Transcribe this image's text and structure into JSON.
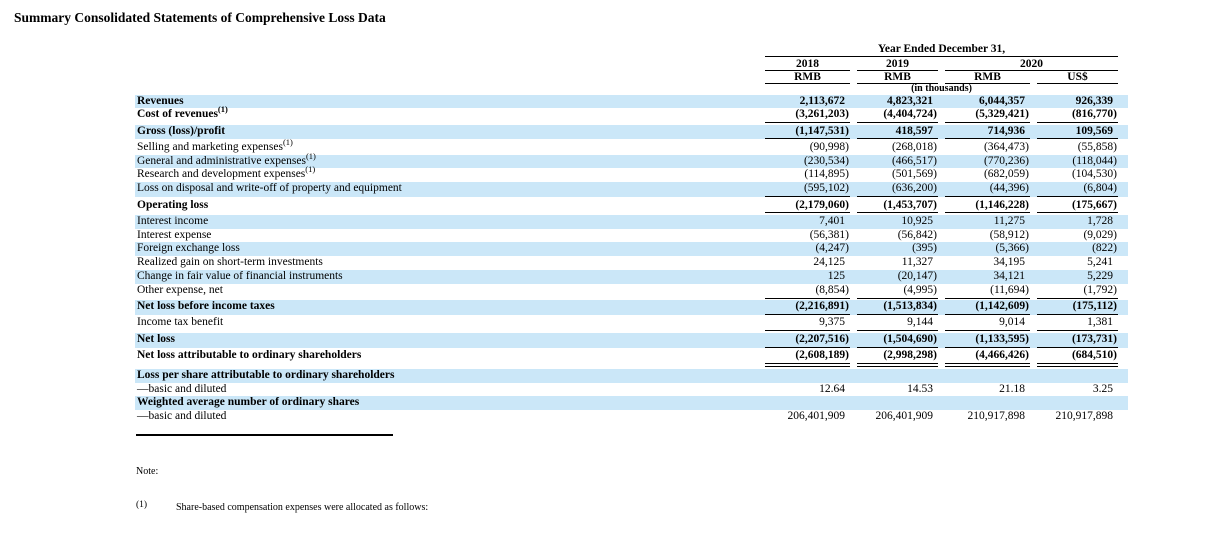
{
  "title": "Summary Consolidated Statements of Comprehensive Loss Data",
  "colors": {
    "row_shade": "#cbe7f8",
    "text": "#000000",
    "rule": "#000000"
  },
  "table": {
    "period_header": "Year Ended December 31,",
    "unit_note": "(in thousands)",
    "year_groups": [
      {
        "label": "2018",
        "span": 1
      },
      {
        "label": "2019",
        "span": 1
      },
      {
        "label": "2020",
        "span": 2
      }
    ],
    "currency_headers": [
      "RMB",
      "RMB",
      "RMB",
      "US$"
    ],
    "rows": [
      {
        "label": "Revenues",
        "sup": "",
        "values": [
          "2,113,672",
          "4,823,321",
          "6,044,357",
          "926,339"
        ],
        "bold": true,
        "shaded": true,
        "underline": false,
        "double_underline": false
      },
      {
        "label": "Cost of revenues",
        "sup": "(1)",
        "values": [
          "(3,261,203)",
          "(4,404,724)",
          "(5,329,421)",
          "(816,770)"
        ],
        "bold": true,
        "shaded": false,
        "underline": true,
        "double_underline": false
      },
      {
        "label": "Gross (loss)/profit",
        "sup": "",
        "values": [
          "(1,147,531)",
          "418,597",
          "714,936",
          "109,569"
        ],
        "bold": true,
        "shaded": true,
        "underline": true,
        "double_underline": false
      },
      {
        "label": "Selling and marketing expenses",
        "sup": "(1)",
        "values": [
          "(90,998)",
          "(268,018)",
          "(364,473)",
          "(55,858)"
        ],
        "bold": false,
        "shaded": false,
        "underline": false,
        "double_underline": false
      },
      {
        "label": "General and administrative expenses",
        "sup": "(1)",
        "values": [
          "(230,534)",
          "(466,517)",
          "(770,236)",
          "(118,044)"
        ],
        "bold": false,
        "shaded": true,
        "underline": false,
        "double_underline": false
      },
      {
        "label": "Research and development expenses",
        "sup": "(1)",
        "values": [
          "(114,895)",
          "(501,569)",
          "(682,059)",
          "(104,530)"
        ],
        "bold": false,
        "shaded": false,
        "underline": false,
        "double_underline": false
      },
      {
        "label": "Loss on disposal and write-off of property and equipment",
        "sup": "",
        "values": [
          "(595,102)",
          "(636,200)",
          "(44,396)",
          "(6,804)"
        ],
        "bold": false,
        "shaded": true,
        "underline": true,
        "double_underline": false
      },
      {
        "label": "Operating loss",
        "sup": "",
        "values": [
          "(2,179,060)",
          "(1,453,707)",
          "(1,146,228)",
          "(175,667)"
        ],
        "bold": true,
        "shaded": false,
        "underline": true,
        "double_underline": false
      },
      {
        "label": "Interest income",
        "sup": "",
        "values": [
          "7,401",
          "10,925",
          "11,275",
          "1,728"
        ],
        "bold": false,
        "shaded": true,
        "underline": false,
        "double_underline": false
      },
      {
        "label": "Interest expense",
        "sup": "",
        "values": [
          "(56,381)",
          "(56,842)",
          "(58,912)",
          "(9,029)"
        ],
        "bold": false,
        "shaded": false,
        "underline": false,
        "double_underline": false
      },
      {
        "label": "Foreign exchange loss",
        "sup": "",
        "values": [
          "(4,247)",
          "(395)",
          "(5,366)",
          "(822)"
        ],
        "bold": false,
        "shaded": true,
        "underline": false,
        "double_underline": false
      },
      {
        "label": "Realized gain on short-term investments",
        "sup": "",
        "values": [
          "24,125",
          "11,327",
          "34,195",
          "5,241"
        ],
        "bold": false,
        "shaded": false,
        "underline": false,
        "double_underline": false
      },
      {
        "label": "Change in fair value of financial instruments",
        "sup": "",
        "values": [
          "125",
          "(20,147)",
          "34,121",
          "5,229"
        ],
        "bold": false,
        "shaded": true,
        "underline": false,
        "double_underline": false
      },
      {
        "label": "Other expense, net",
        "sup": "",
        "values": [
          "(8,854)",
          "(4,995)",
          "(11,694)",
          "(1,792)"
        ],
        "bold": false,
        "shaded": false,
        "underline": true,
        "double_underline": false
      },
      {
        "label": "Net loss before income taxes",
        "sup": "",
        "values": [
          "(2,216,891)",
          "(1,513,834)",
          "(1,142,609)",
          "(175,112)"
        ],
        "bold": true,
        "shaded": true,
        "underline": true,
        "double_underline": false
      },
      {
        "label": "Income tax benefit",
        "sup": "",
        "values": [
          "9,375",
          "9,144",
          "9,014",
          "1,381"
        ],
        "bold": false,
        "shaded": false,
        "underline": true,
        "double_underline": false
      },
      {
        "label": "Net loss",
        "sup": "",
        "values": [
          "(2,207,516)",
          "(1,504,690)",
          "(1,133,595)",
          "(173,731)"
        ],
        "bold": true,
        "shaded": true,
        "underline": true,
        "double_underline": false
      },
      {
        "label": "Net loss attributable to ordinary shareholders",
        "sup": "",
        "values": [
          "(2,608,189)",
          "(2,998,298)",
          "(4,466,426)",
          "(684,510)"
        ],
        "bold": true,
        "shaded": false,
        "underline": false,
        "double_underline": true
      },
      {
        "label": "Loss per share attributable to ordinary shareholders",
        "sup": "",
        "values": [
          "",
          "",
          "",
          ""
        ],
        "bold": true,
        "shaded": true,
        "underline": false,
        "double_underline": false
      },
      {
        "label": "—basic and diluted",
        "sup": "",
        "values": [
          "12.64",
          "14.53",
          "21.18",
          "3.25"
        ],
        "bold": false,
        "shaded": false,
        "underline": false,
        "double_underline": false
      },
      {
        "label": "Weighted average number of ordinary shares",
        "sup": "",
        "values": [
          "",
          "",
          "",
          ""
        ],
        "bold": true,
        "shaded": true,
        "underline": false,
        "double_underline": false
      },
      {
        "label": "—basic and diluted",
        "sup": "",
        "values": [
          "206,401,909",
          "206,401,909",
          "210,917,898",
          "210,917,898"
        ],
        "bold": false,
        "shaded": false,
        "underline": false,
        "double_underline": false
      }
    ]
  },
  "note": {
    "label": "Note:",
    "items": [
      {
        "marker": "(1)",
        "text": "Share-based compensation expenses were allocated as follows:"
      }
    ]
  }
}
